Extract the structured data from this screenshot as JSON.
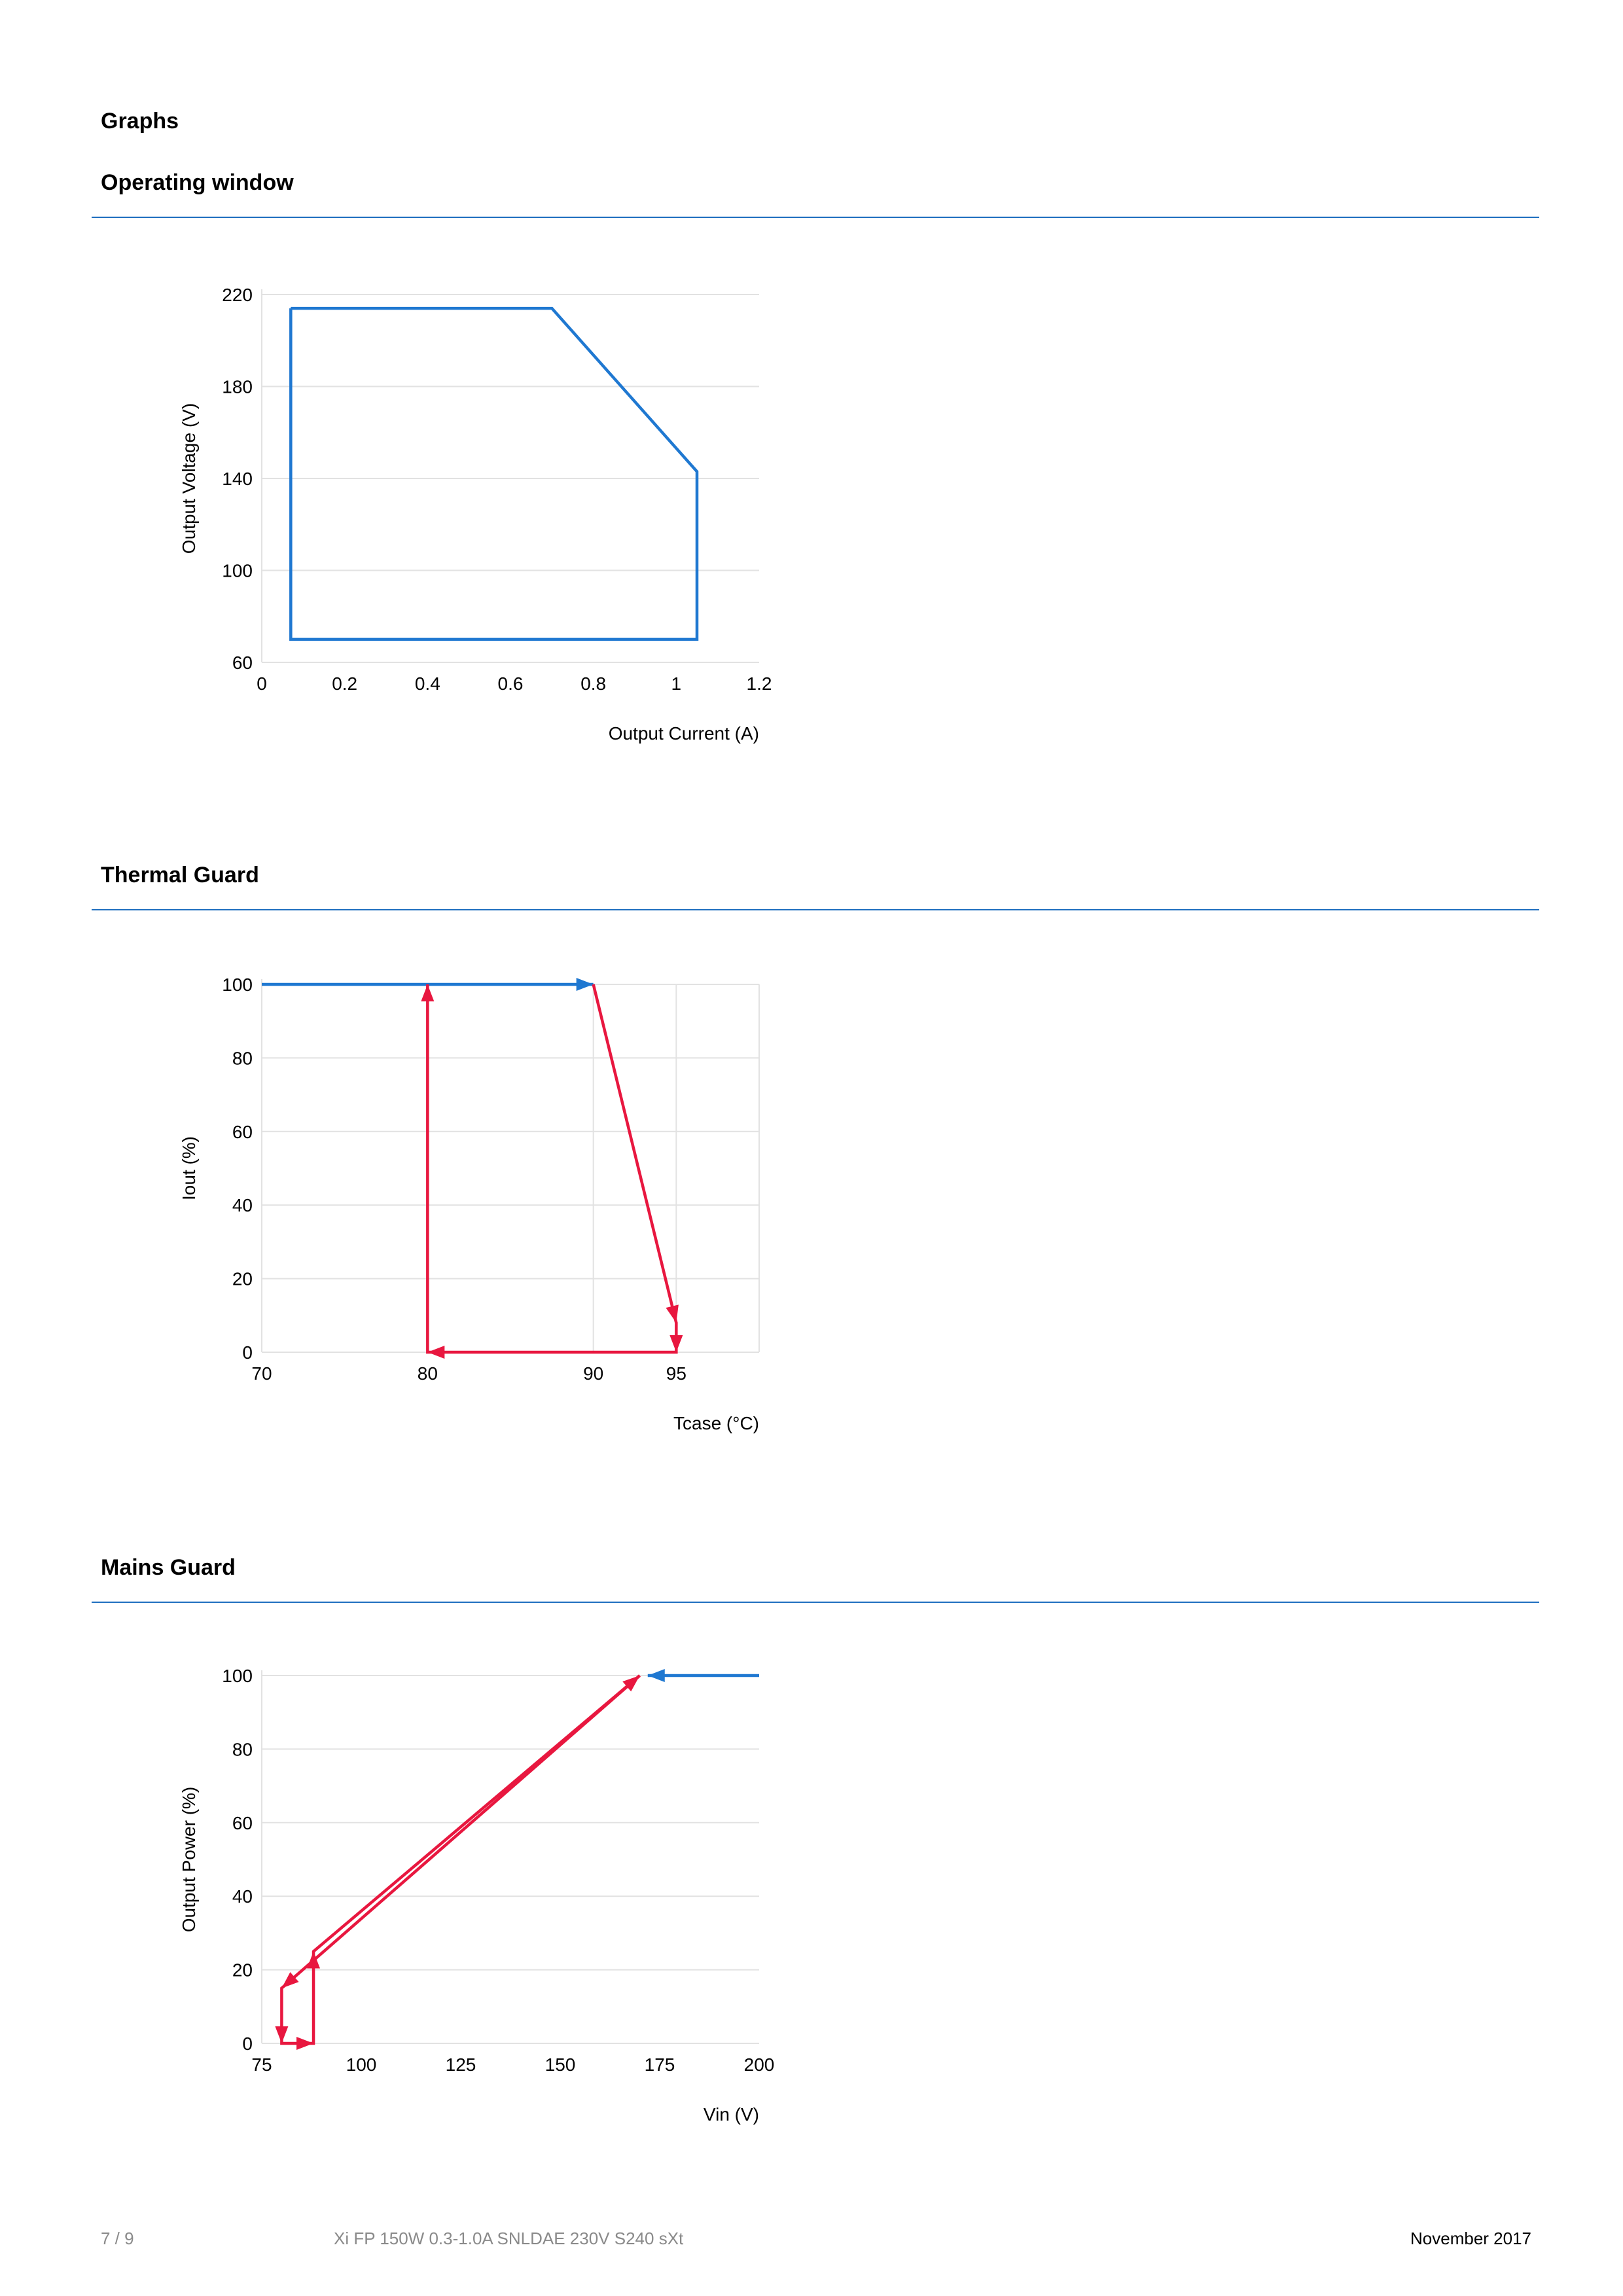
{
  "page": {
    "section_title": "Graphs",
    "sections": [
      {
        "title": "Operating window"
      },
      {
        "title": "Thermal Guard"
      },
      {
        "title": "Mains Guard"
      }
    ]
  },
  "footer": {
    "page_number": "7 / 9",
    "product": "Xi FP 150W 0.3-1.0A SNLDAE 230V S240 sXt",
    "date": "November 2017"
  },
  "colors": {
    "blue": "#1f78d1",
    "red": "#e8173f",
    "grid": "#dddddd",
    "rule": "#1f6fbf"
  },
  "chart_data": [
    {
      "type": "line",
      "title": "Operating window",
      "xlabel": "Output Current (A)",
      "ylabel": "Output Voltage (V)",
      "xlim": [
        0,
        1.2
      ],
      "ylim": [
        60,
        220
      ],
      "xticks": [
        0,
        0.2,
        0.4,
        0.6,
        0.8,
        1,
        1.2
      ],
      "xtick_labels": [
        "0",
        "0.2",
        "0.4",
        "0.6",
        "0.8",
        "1",
        "1.2"
      ],
      "yticks": [
        60,
        100,
        140,
        180,
        220
      ],
      "ytick_labels": [
        "60",
        "100",
        "140",
        "180",
        "220"
      ],
      "grid": "horizontal",
      "series": [
        {
          "color": "#1f78d1",
          "x": [
            0.07,
            0.7,
            1.05,
            1.05,
            0.07,
            0.07
          ],
          "y": [
            214,
            214,
            143,
            70,
            70,
            214
          ]
        }
      ]
    },
    {
      "type": "line",
      "title": "Thermal Guard",
      "xlabel": "Tcase (°C)",
      "ylabel": "Iout (%)",
      "xlim": [
        70,
        100
      ],
      "ylim": [
        0,
        100
      ],
      "xticks": [
        70,
        80,
        90,
        95
      ],
      "xtick_labels": [
        "70",
        "80",
        "90",
        "95"
      ],
      "yticks": [
        0,
        20,
        40,
        60,
        80,
        100
      ],
      "ytick_labels": [
        "0",
        "20",
        "40",
        "60",
        "80",
        "100"
      ],
      "grid": "both",
      "series": [
        {
          "color": "#1f78d1",
          "x": [
            70,
            90
          ],
          "y": [
            100,
            100
          ]
        },
        {
          "color": "#e8173f",
          "x": [
            90,
            95,
            95,
            80,
            80
          ],
          "y": [
            100,
            8,
            0,
            0,
            100
          ]
        }
      ]
    },
    {
      "type": "line",
      "title": "Mains Guard",
      "xlabel": "Vin (V)",
      "ylabel": "Output Power (%)",
      "xlim": [
        75,
        200
      ],
      "ylim": [
        0,
        100
      ],
      "xticks": [
        75,
        100,
        125,
        150,
        175,
        200
      ],
      "xtick_labels": [
        "75",
        "100",
        "125",
        "150",
        "175",
        "200"
      ],
      "yticks": [
        0,
        20,
        40,
        60,
        80,
        100
      ],
      "ytick_labels": [
        "0",
        "20",
        "40",
        "60",
        "80",
        "100"
      ],
      "grid": "horizontal",
      "series": [
        {
          "color": "#1f78d1",
          "x": [
            200,
            172
          ],
          "y": [
            100,
            100
          ]
        },
        {
          "color": "#e8173f",
          "x": [
            170,
            80,
            80,
            88,
            88,
            170
          ],
          "y": [
            100,
            15,
            0,
            0,
            25,
            100
          ]
        }
      ]
    }
  ]
}
